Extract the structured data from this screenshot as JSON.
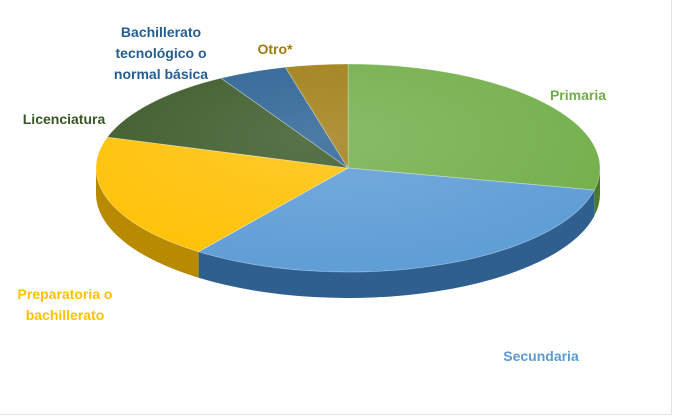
{
  "chart_data": {
    "type": "pie",
    "title": "",
    "categories": [
      "Primaria",
      "Secundaria",
      "Preparatoria o bachillerato",
      "Licenciatura",
      "Bachillerato tecnológico o normal básica",
      "Otro*"
    ],
    "values": [
      28.4,
      31.7,
      19.7,
      11.8,
      4.4,
      4.0
    ],
    "label_lines": [
      [
        "Primaria"
      ],
      [
        "Secundaria"
      ],
      [
        "Preparatoria o",
        "bachillerato"
      ],
      [
        "Licenciatura"
      ],
      [
        "Bachillerato",
        "tecnológico o",
        "normal básica"
      ],
      [
        "Otro*"
      ]
    ],
    "colors": [
      "#70ad47",
      "#5b9bd5",
      "#ffc000",
      "#375623",
      "#255e91",
      "#9e7b0f"
    ],
    "side_colors": [
      "#4a7a2c",
      "#2e5f8f",
      "#b88a00",
      "#24391a",
      "#173e61",
      "#6b5209"
    ],
    "label_colors": [
      "#70ad47",
      "#5b9bd5",
      "#ffc000",
      "#375623",
      "#255e91",
      "#9e7b0f"
    ],
    "legend": "none",
    "style": "3d-pie"
  }
}
